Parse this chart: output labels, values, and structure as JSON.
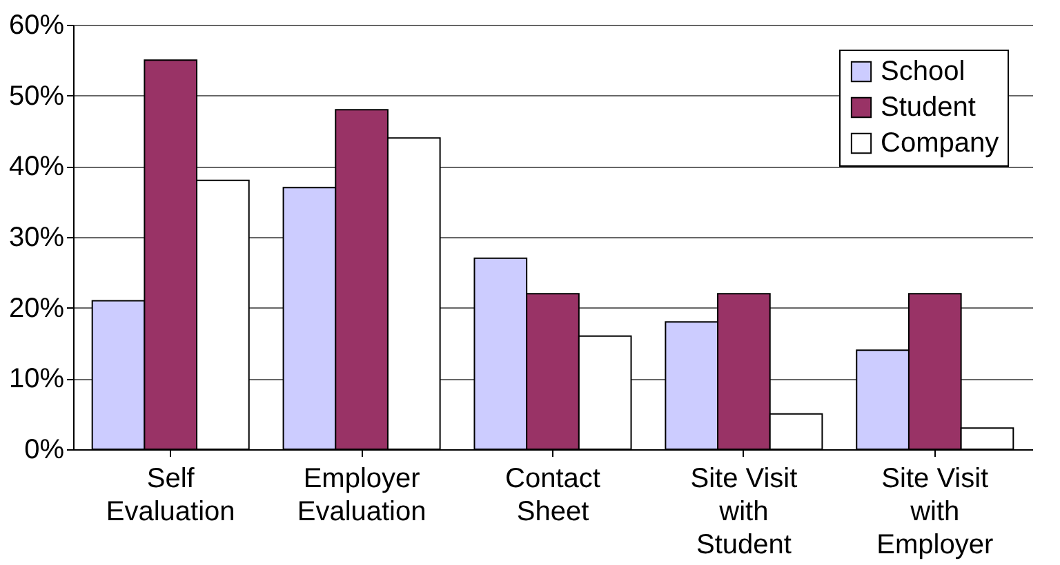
{
  "chart_data": {
    "type": "bar",
    "categories": [
      "Self Evaluation",
      "Employer Evaluation",
      "Contact Sheet",
      "Site Visit with Student",
      "Site Visit with Employer"
    ],
    "series": [
      {
        "name": "School",
        "color": "#ccccff",
        "values": [
          21,
          37,
          27,
          18,
          14
        ]
      },
      {
        "name": "Student",
        "color": "#993366",
        "values": [
          55,
          48,
          22,
          22,
          22
        ]
      },
      {
        "name": "Company",
        "color": "#ffffff",
        "values": [
          38,
          44,
          16,
          5,
          3
        ]
      }
    ],
    "ylim": [
      0,
      60
    ],
    "yticks": [
      {
        "value": 0,
        "label": "0%"
      },
      {
        "value": 10,
        "label": "10%"
      },
      {
        "value": 20,
        "label": "20%"
      },
      {
        "value": 30,
        "label": "30%"
      },
      {
        "value": 40,
        "label": "40%"
      },
      {
        "value": 50,
        "label": "50%"
      },
      {
        "value": 60,
        "label": "60%"
      }
    ],
    "grid": "y",
    "legend": "top right"
  }
}
